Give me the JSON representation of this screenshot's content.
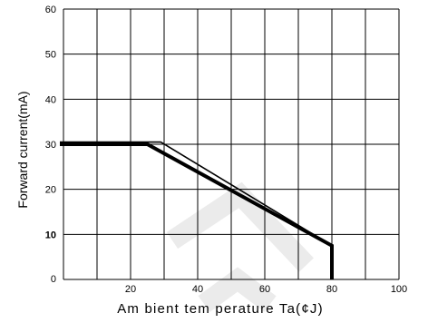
{
  "chart_data": {
    "type": "line",
    "title": "",
    "xlabel": "Am bient tem perature Ta(¢J)",
    "ylabel": "Forward current(mA)",
    "xlim": [
      0,
      100
    ],
    "ylim": [
      0,
      60
    ],
    "x_ticks": [
      "20",
      "40",
      "60",
      "80",
      "100"
    ],
    "y_ticks": [
      "0",
      "10",
      "20",
      "30",
      "40",
      "50",
      "60"
    ],
    "grid": true,
    "series": [
      {
        "x": [
          0,
          25,
          80,
          80
        ],
        "y": [
          30,
          30,
          7.5,
          0
        ],
        "style": "thick"
      },
      {
        "x": [
          0,
          29,
          80
        ],
        "y": [
          30.5,
          30.5,
          7.5
        ],
        "style": "thin"
      }
    ],
    "watermark_color": "#ebebeb",
    "line_color": "#000000"
  }
}
